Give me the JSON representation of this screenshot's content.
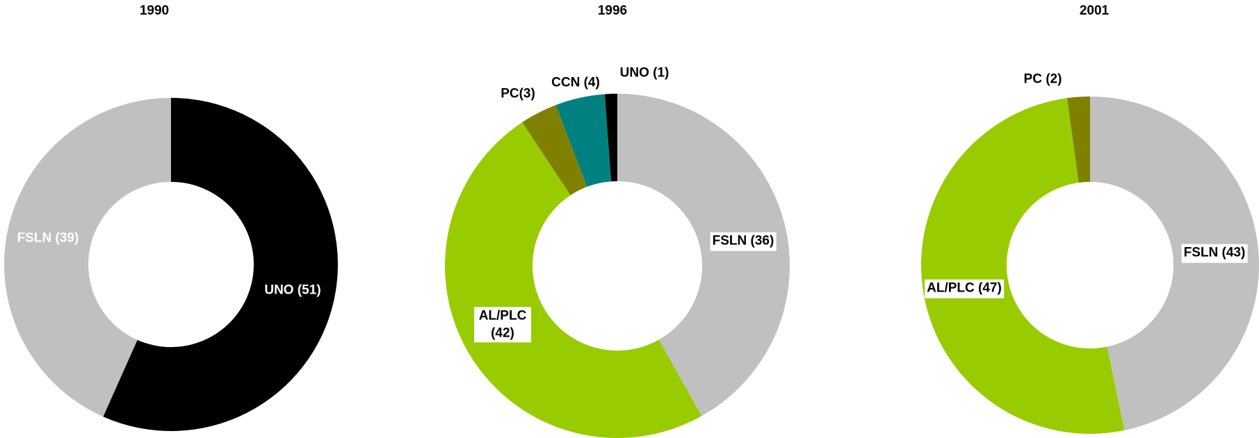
{
  "chart_data": [
    {
      "type": "donut",
      "title": "1990",
      "categories": [
        "UNO",
        "FSLN"
      ],
      "values": [
        51,
        39
      ],
      "value_labels": [
        "UNO (51)",
        "FSLN (39)"
      ],
      "colors": [
        "#000000",
        "#c0c0c0"
      ]
    },
    {
      "type": "donut",
      "title": "1996",
      "categories": [
        "FSLN",
        "AL/PLC",
        "PC",
        "CCN",
        "UNO"
      ],
      "values": [
        36,
        42,
        3,
        4,
        1
      ],
      "value_labels": [
        "FSLN (36)",
        "AL/PLC (42)",
        "PC(3)",
        "CCN (4)",
        "UNO (1)"
      ],
      "colors": [
        "#c0c0c0",
        "#99cc00",
        "#808000",
        "#008080",
        "#000000"
      ]
    },
    {
      "type": "donut",
      "title": "2001",
      "categories": [
        "FSLN",
        "AL/PLC",
        "PC"
      ],
      "values": [
        43,
        47,
        2
      ],
      "value_labels": [
        "FSLN (43)",
        "AL/PLC (47)",
        "PC (2)"
      ],
      "colors": [
        "#c0c0c0",
        "#99cc00",
        "#808000"
      ]
    }
  ]
}
